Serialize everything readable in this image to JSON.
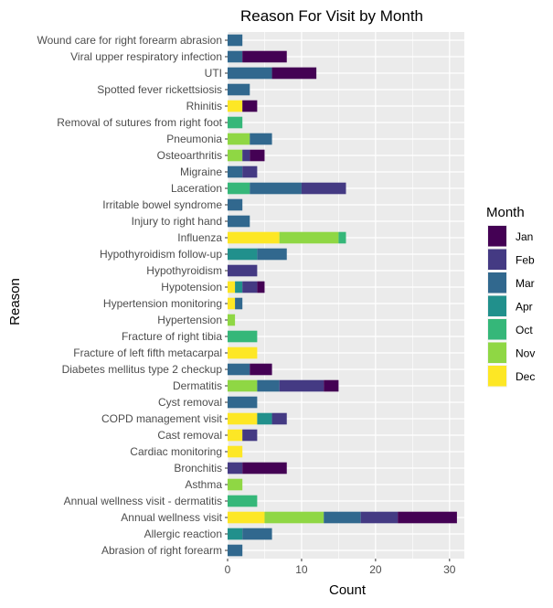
{
  "chart_data": {
    "type": "bar",
    "orientation": "horizontal",
    "stacked": true,
    "title": "Reason For Visit by Month",
    "xlabel": "Count",
    "ylabel": "Reason",
    "xlim": [
      0,
      32
    ],
    "xticks": [
      0,
      10,
      20,
      30
    ],
    "grid": true,
    "legend_position": "right",
    "legend_title": "Month",
    "months": [
      "Jan",
      "Feb",
      "Mar",
      "Apr",
      "Oct",
      "Nov",
      "Dec"
    ],
    "colors": {
      "Jan": "#440154",
      "Feb": "#443a83",
      "Mar": "#31688e",
      "Apr": "#21908c",
      "Oct": "#35b779",
      "Nov": "#8fd744",
      "Dec": "#fde725"
    },
    "categories": [
      "Wound care for right forearm abrasion",
      "Viral upper respiratory infection",
      "UTI",
      "Spotted fever rickettsiosis",
      "Rhinitis",
      "Removal of sutures from right foot",
      "Pneumonia",
      "Osteoarthritis",
      "Migraine",
      "Laceration",
      "Irritable bowel syndrome",
      "Injury to right hand",
      "Influenza",
      "Hypothyroidism follow-up",
      "Hypothyroidism",
      "Hypotension",
      "Hypertension monitoring",
      "Hypertension",
      "Fracture of right tibia",
      "Fracture of left fifth metacarpal",
      "Diabetes mellitus type 2 checkup",
      "Dermatitis",
      "Cyst removal",
      "COPD management visit",
      "Cast removal",
      "Cardiac monitoring",
      "Bronchitis",
      "Asthma",
      "Annual wellness visit - dermatitis",
      "Annual wellness visit",
      "Allergic reaction",
      "Abrasion of right forearm"
    ],
    "series": [
      {
        "name": "Dec",
        "values": [
          0,
          0,
          0,
          0,
          2,
          0,
          0,
          0,
          0,
          0,
          0,
          0,
          7,
          0,
          0,
          1,
          1,
          0,
          0,
          4,
          0,
          0,
          0,
          4,
          2,
          2,
          0,
          0,
          0,
          5,
          0,
          0
        ]
      },
      {
        "name": "Nov",
        "values": [
          0,
          0,
          0,
          0,
          0,
          0,
          3,
          2,
          0,
          0,
          0,
          0,
          8,
          0,
          0,
          0,
          0,
          1,
          0,
          0,
          0,
          4,
          0,
          0,
          0,
          0,
          0,
          2,
          0,
          8,
          0,
          0
        ]
      },
      {
        "name": "Oct",
        "values": [
          0,
          0,
          0,
          0,
          0,
          2,
          0,
          0,
          0,
          3,
          0,
          0,
          1,
          0,
          0,
          0,
          0,
          0,
          4,
          0,
          0,
          0,
          0,
          0,
          0,
          0,
          0,
          0,
          4,
          0,
          0,
          0
        ]
      },
      {
        "name": "Apr",
        "values": [
          0,
          0,
          0,
          0,
          0,
          0,
          0,
          0,
          0,
          0,
          0,
          0,
          0,
          4,
          0,
          1,
          0,
          0,
          0,
          0,
          0,
          0,
          0,
          2,
          0,
          0,
          0,
          0,
          0,
          0,
          2,
          0
        ]
      },
      {
        "name": "Mar",
        "values": [
          2,
          2,
          6,
          3,
          0,
          0,
          3,
          0,
          2,
          7,
          2,
          3,
          0,
          4,
          0,
          0,
          1,
          0,
          0,
          0,
          3,
          3,
          4,
          0,
          0,
          0,
          0,
          0,
          0,
          5,
          4,
          2
        ]
      },
      {
        "name": "Feb",
        "values": [
          0,
          0,
          0,
          0,
          0,
          0,
          0,
          1,
          2,
          6,
          0,
          0,
          0,
          0,
          4,
          2,
          0,
          0,
          0,
          0,
          0,
          6,
          0,
          2,
          2,
          0,
          2,
          0,
          0,
          5,
          0,
          0
        ]
      },
      {
        "name": "Jan",
        "values": [
          0,
          6,
          6,
          0,
          2,
          0,
          0,
          2,
          0,
          0,
          0,
          0,
          0,
          0,
          0,
          1,
          0,
          0,
          0,
          0,
          3,
          2,
          0,
          0,
          0,
          0,
          6,
          0,
          0,
          8,
          0,
          0
        ]
      }
    ]
  }
}
